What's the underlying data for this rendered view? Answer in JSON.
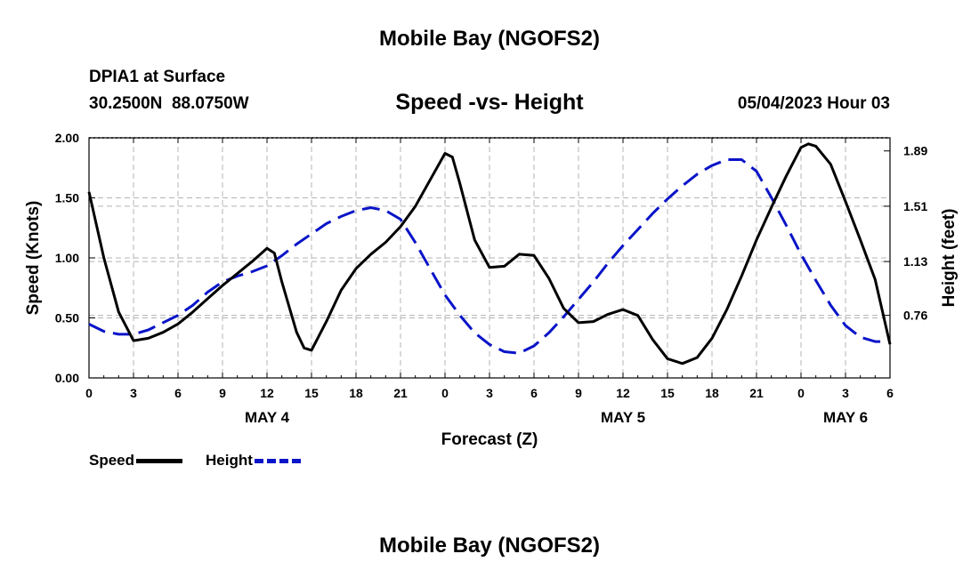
{
  "header": {
    "title": "Mobile Bay (NGOFS2)",
    "station": "DPIA1 at Surface",
    "coords": "30.2500N  88.0750W",
    "subtitle": "Speed -vs- Height",
    "timestamp": "05/04/2023 Hour 03"
  },
  "footer": {
    "title": "Mobile Bay (NGOFS2)"
  },
  "colors": {
    "speed": "#000000",
    "height": "#0a14c8",
    "grid": "#b4b4b4"
  },
  "chart_data": {
    "type": "line",
    "xlabel": "Forecast (Z)",
    "ylabel": "Speed (Knots)",
    "y2label": "Height (feet)",
    "xlim": [
      0,
      54
    ],
    "ylim": [
      0,
      2.0
    ],
    "y2lim": [
      0.33,
      1.98
    ],
    "grid": true,
    "legend": "bottom-left",
    "x_ticks": [
      0,
      3,
      6,
      9,
      12,
      15,
      18,
      21,
      24,
      27,
      30,
      33,
      36,
      39,
      42,
      45,
      48,
      51,
      54
    ],
    "x_tick_labels": [
      "0",
      "3",
      "6",
      "9",
      "12",
      "15",
      "18",
      "21",
      "0",
      "3",
      "6",
      "9",
      "12",
      "15",
      "18",
      "21",
      "0",
      "3",
      "6"
    ],
    "y_ticks": [
      0,
      0.5,
      1.0,
      1.5,
      2.0
    ],
    "y_tick_labels": [
      "0.00",
      "0.50",
      "1.00",
      "1.50",
      "2.00"
    ],
    "y2_ticks": [
      0.76,
      1.13,
      1.51,
      1.89
    ],
    "y2_tick_labels": [
      "0.76",
      "1.13",
      "1.51",
      "1.89"
    ],
    "day_labels": [
      {
        "x": 12,
        "label": "MAY 4"
      },
      {
        "x": 36,
        "label": "MAY 5"
      },
      {
        "x": 51,
        "label": "MAY 6"
      }
    ],
    "series": [
      {
        "name": "Speed",
        "axis": "left",
        "style": "solid",
        "x": [
          0,
          1,
          2,
          3,
          4,
          5,
          6,
          7,
          8,
          9,
          10,
          11,
          12,
          12.5,
          13,
          14,
          14.5,
          15,
          16,
          17,
          18,
          19,
          20,
          21,
          22,
          23,
          24,
          24.5,
          25,
          26,
          27,
          28,
          29,
          30,
          31,
          32,
          33,
          34,
          35,
          36,
          37,
          38,
          39,
          40,
          41,
          42,
          43,
          44,
          45,
          46,
          47,
          48,
          48.5,
          49,
          50,
          51,
          52,
          53,
          54
        ],
        "values": [
          1.55,
          1.0,
          0.55,
          0.31,
          0.33,
          0.38,
          0.45,
          0.55,
          0.66,
          0.77,
          0.87,
          0.97,
          1.08,
          1.04,
          0.8,
          0.38,
          0.25,
          0.23,
          0.47,
          0.73,
          0.91,
          1.03,
          1.13,
          1.26,
          1.43,
          1.65,
          1.87,
          1.84,
          1.62,
          1.15,
          0.92,
          0.93,
          1.03,
          1.02,
          0.83,
          0.58,
          0.46,
          0.47,
          0.53,
          0.57,
          0.52,
          0.32,
          0.16,
          0.12,
          0.17,
          0.33,
          0.57,
          0.85,
          1.15,
          1.42,
          1.68,
          1.92,
          1.95,
          1.93,
          1.78,
          1.47,
          1.15,
          0.82,
          0.28
        ]
      },
      {
        "name": "Height",
        "axis": "right",
        "style": "dashed",
        "x": [
          0,
          1,
          2,
          3,
          4,
          5,
          6,
          7,
          8,
          9,
          10,
          11,
          12,
          13,
          14,
          15,
          16,
          17,
          18,
          19,
          20,
          21,
          22,
          23,
          24,
          25,
          26,
          27,
          28,
          29,
          30,
          31,
          32,
          33,
          34,
          35,
          36,
          37,
          38,
          39,
          40,
          41,
          42,
          43,
          44,
          45,
          46,
          47,
          48,
          49,
          50,
          51,
          52,
          53,
          54
        ],
        "values": [
          0.7,
          0.65,
          0.63,
          0.63,
          0.66,
          0.71,
          0.76,
          0.83,
          0.92,
          0.99,
          1.03,
          1.06,
          1.1,
          1.17,
          1.25,
          1.32,
          1.39,
          1.44,
          1.48,
          1.5,
          1.48,
          1.42,
          1.26,
          1.08,
          0.9,
          0.76,
          0.64,
          0.56,
          0.51,
          0.5,
          0.55,
          0.64,
          0.75,
          0.87,
          0.99,
          1.12,
          1.24,
          1.35,
          1.46,
          1.56,
          1.65,
          1.73,
          1.79,
          1.83,
          1.83,
          1.75,
          1.57,
          1.38,
          1.18,
          1.0,
          0.83,
          0.69,
          0.61,
          0.58,
          0.58
        ]
      }
    ]
  }
}
